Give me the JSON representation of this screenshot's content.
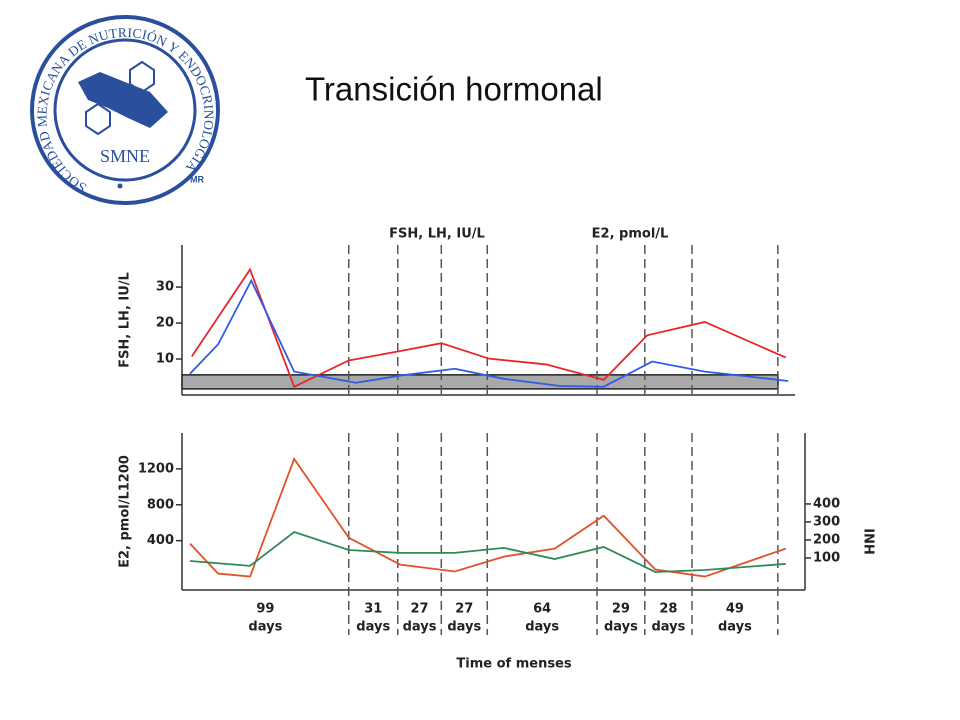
{
  "title": "Transición hormonal",
  "logo": {
    "ring_text": "SOCIEDAD MEXICANA DE NUTRICIÓN Y ENDOCRINOLOGÍA",
    "acronym": "SMNE",
    "mark": "MR"
  },
  "chart_data": [
    {
      "type": "line",
      "ylabel": "FSH, LH, IU/L",
      "annotations": [
        "FSH, LH, IU/L",
        "E2, pmol/L"
      ],
      "xlim": [
        0,
        100
      ],
      "ylim": [
        0,
        41.7
      ],
      "yticks": [
        10,
        20,
        30
      ],
      "band": [
        1.7,
        5.6
      ],
      "band_color": "#a9a9a9",
      "vlines": [
        27.2,
        35.2,
        42.3,
        49.8,
        67.7,
        75.5,
        83.2,
        97.2
      ],
      "series": [
        {
          "color": "#e8262a",
          "x": [
            1.6,
            11.1,
            18.3,
            27.2,
            35.2,
            42.3,
            50.1,
            59.4,
            68.8,
            75.9,
            85.3,
            98.5
          ],
          "values": [
            10.7,
            34.9,
            2.3,
            9.6,
            12.1,
            14.4,
            10.1,
            8.5,
            4.2,
            16.6,
            20.3,
            10.4
          ]
        },
        {
          "color": "#2e5ce6",
          "x": [
            1.3,
            5.9,
            11.3,
            18.3,
            28.4,
            35.6,
            44.5,
            52.5,
            61.7,
            68.8,
            76.7,
            85.3,
            98.9
          ],
          "values": [
            5.9,
            14.1,
            31.8,
            6.5,
            3.4,
            5.4,
            7.3,
            4.5,
            2.5,
            2.3,
            9.3,
            6.5,
            3.9
          ]
        }
      ]
    },
    {
      "type": "line",
      "ylabel": "E2, pmol/L1200",
      "y2label": "INH",
      "xlabel": "Time of menses",
      "xlim": [
        0,
        100
      ],
      "ylim": [
        -150,
        1600
      ],
      "yticks": [
        400,
        800,
        1200
      ],
      "y2lim": [
        -78,
        794
      ],
      "y2ticks": [
        100,
        200,
        300,
        400
      ],
      "vlines": [
        27.2,
        35.2,
        42.3,
        49.8,
        67.7,
        75.5,
        83.2,
        97.2
      ],
      "intervals": [
        {
          "count": "99",
          "unit": "days"
        },
        {
          "count": "31",
          "unit": "days"
        },
        {
          "count": "27",
          "unit": "days"
        },
        {
          "count": "27",
          "unit": "days"
        },
        {
          "count": "64",
          "unit": "days"
        },
        {
          "count": "29",
          "unit": "days"
        },
        {
          "count": "28",
          "unit": "days"
        },
        {
          "count": "49",
          "unit": "days"
        }
      ],
      "series": [
        {
          "color": "#e0522a",
          "x": [
            1.3,
            5.9,
            11.1,
            18.3,
            27.2,
            35.6,
            44.5,
            52.5,
            60.8,
            68.8,
            77.2,
            85.3,
            98.5
          ],
          "values": [
            367,
            33,
            0,
            1311,
            433,
            133,
            56,
            222,
            311,
            678,
            78,
            0,
            311
          ]
        },
        {
          "color": "#2e8b57",
          "axis": "y2",
          "x": [
            1.3,
            11.1,
            18.3,
            27.2,
            35.6,
            44.5,
            52.5,
            60.8,
            68.8,
            77.2,
            85.3,
            98.5
          ],
          "values": [
            83,
            56,
            244,
            144,
            128,
            128,
            156,
            94,
            161,
            22,
            33,
            67
          ]
        }
      ]
    }
  ]
}
